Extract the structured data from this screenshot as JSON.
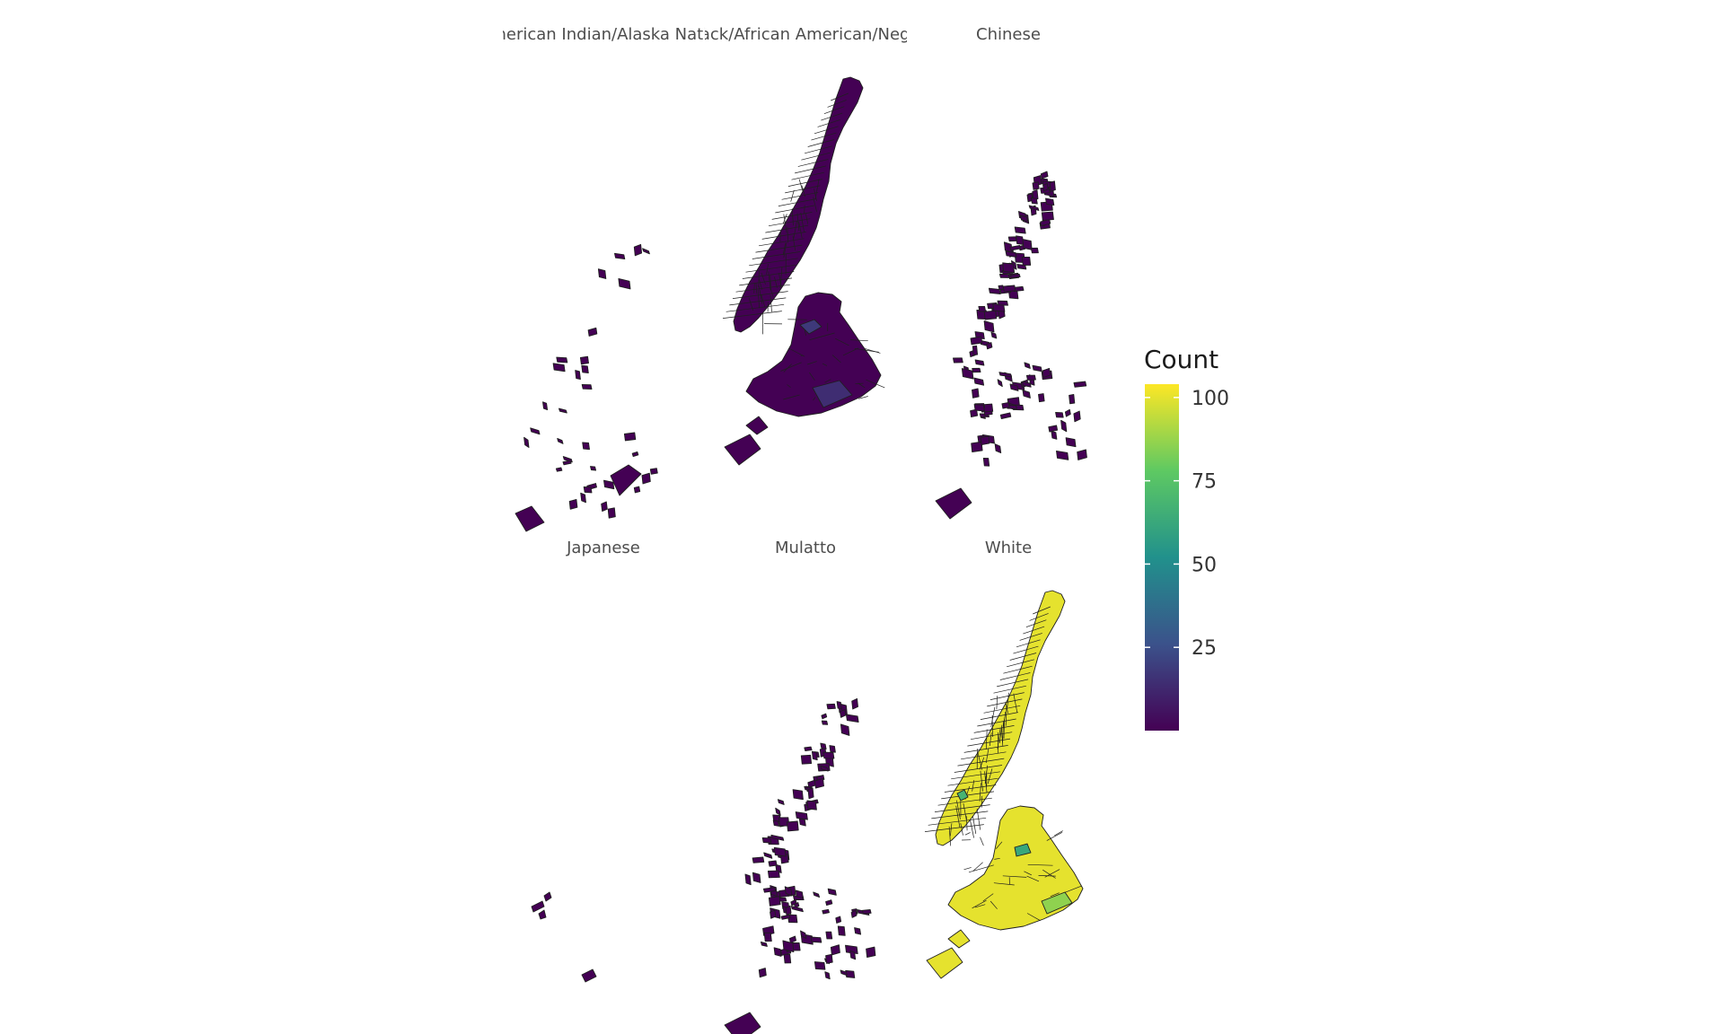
{
  "facets": [
    {
      "id": "american-indian",
      "label": "American Indian/Alaska Native",
      "count_level": 0
    },
    {
      "id": "black",
      "label": "Black/African American/Negro",
      "count_level": 0
    },
    {
      "id": "chinese",
      "label": "Chinese",
      "count_level": 0
    },
    {
      "id": "japanese",
      "label": "Japanese",
      "count_level": 0
    },
    {
      "id": "mulatto",
      "label": "Mulatto",
      "count_level": 0
    },
    {
      "id": "white",
      "label": "White",
      "count_level": 100
    }
  ],
  "legend": {
    "title": "Count",
    "ticks": [
      {
        "value": 100,
        "label": "100"
      },
      {
        "value": 75,
        "label": "75"
      },
      {
        "value": 50,
        "label": "50"
      },
      {
        "value": 25,
        "label": "25"
      }
    ],
    "range": [
      0,
      104
    ],
    "colors": [
      "#440154",
      "#3b528b",
      "#21918c",
      "#5ec962",
      "#fde725"
    ]
  }
}
